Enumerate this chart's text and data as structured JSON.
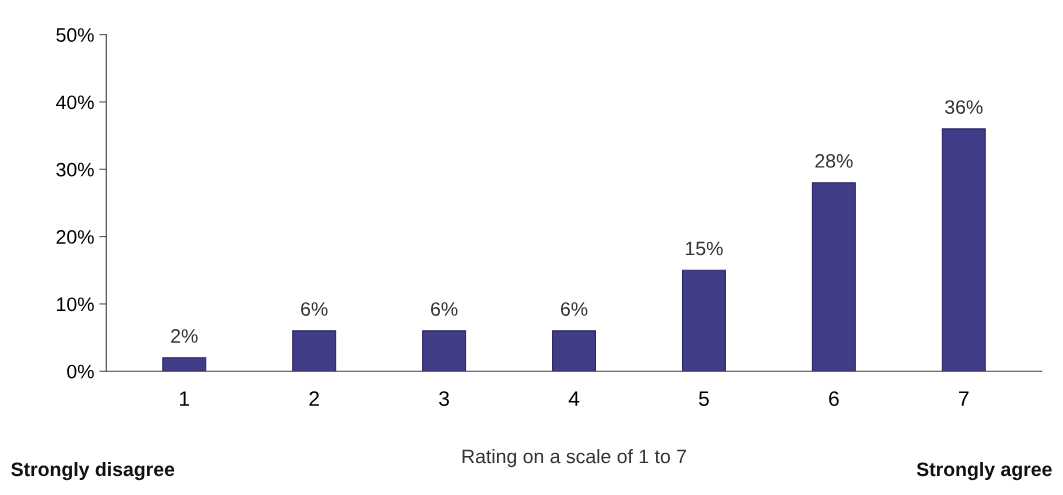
{
  "chart_data": {
    "type": "bar",
    "xlabel": "Rating on a scale of 1 to 7",
    "categories": [
      "1",
      "2",
      "3",
      "4",
      "5",
      "6",
      "7"
    ],
    "values": [
      2,
      6,
      6,
      6,
      15,
      28,
      36
    ],
    "color": "#403c87",
    "value_labels": [
      "2%",
      "6%",
      "6%",
      "6%",
      "15%",
      "28%",
      "36%"
    ],
    "ylim": [
      0,
      50
    ],
    "yticks": [
      {
        "value": 0,
        "label": "0%"
      },
      {
        "value": 10,
        "label": "10%"
      },
      {
        "value": 20,
        "label": "20%"
      },
      {
        "value": 30,
        "label": "30%"
      },
      {
        "value": 40,
        "label": "40%"
      },
      {
        "value": 50,
        "label": "50%"
      }
    ],
    "annotations": [
      "Strongly disagree",
      "Strongly agree"
    ],
    "grid": false,
    "legend": false
  }
}
